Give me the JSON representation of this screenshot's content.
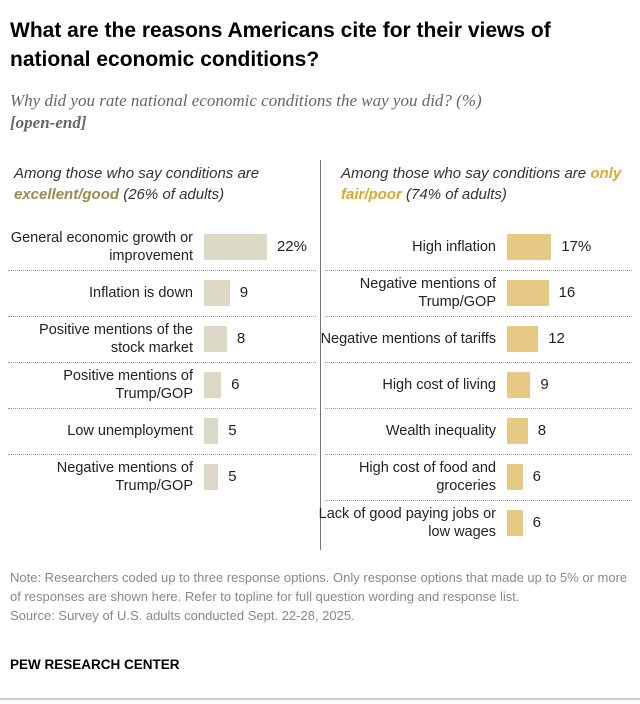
{
  "title": "What are the reasons Americans cite for their views of national economic conditions?",
  "subtitle": "Why did you rate national economic conditions the way you did? (%)",
  "subtitle_tag": "[open-end]",
  "chart_data": [
    {
      "type": "bar",
      "orientation": "horizontal",
      "header_prefix": "Among those who say conditions are",
      "header_highlight": "excellent/good",
      "header_suffix": "(26% of adults)",
      "highlight_color": "#9a8a50",
      "bar_color": "#dcd9c6",
      "categories": [
        "General economic growth or improvement",
        "Inflation is down",
        "Positive mentions of the stock market",
        "Positive mentions of Trump/GOP",
        "Low unemployment",
        "Negative mentions of Trump/GOP"
      ],
      "values": [
        22,
        9,
        8,
        6,
        5,
        5
      ],
      "value_labels": [
        "22%",
        "9",
        "8",
        "6",
        "5",
        "5"
      ]
    },
    {
      "type": "bar",
      "orientation": "horizontal",
      "header_prefix": "Among those who say conditions are",
      "header_highlight": "only fair/poor",
      "header_suffix": "(74% of adults)",
      "highlight_color": "#d9a92e",
      "bar_color": "#e6ca83",
      "categories": [
        "High inflation",
        "Negative mentions of Trump/GOP",
        "Negative mentions of tariffs",
        "High cost of living",
        "Wealth inequality",
        "High cost of food and groceries",
        "Lack of good paying jobs or low wages"
      ],
      "values": [
        17,
        16,
        12,
        9,
        8,
        6,
        6
      ],
      "value_labels": [
        "17%",
        "16",
        "12",
        "9",
        "8",
        "6",
        "6"
      ]
    }
  ],
  "note": "Note: Researchers coded up to three response options. Only response options that made up to 5% or more of responses are shown here. Refer to topline for full question wording and response list.",
  "source": "Source: Survey of U.S. adults conducted Sept. 22-28, 2025.",
  "brand": "PEW RESEARCH CENTER"
}
